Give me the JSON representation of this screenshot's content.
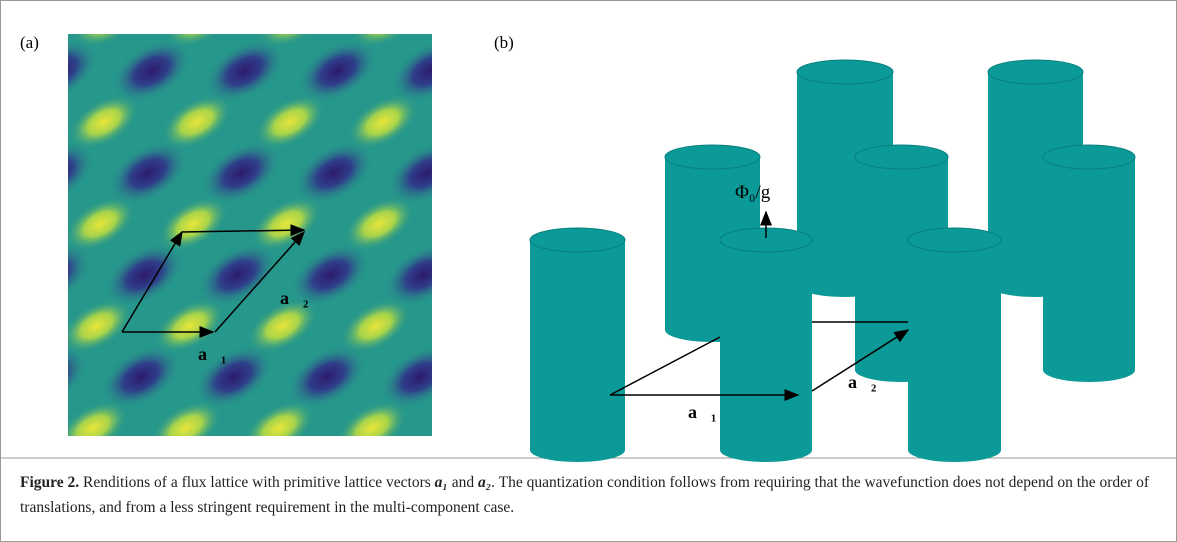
{
  "panels": {
    "a": {
      "label": "(a)",
      "vector_1": "a⃗₁",
      "vector_2": "a⃗₂"
    },
    "b": {
      "label": "(b)",
      "vector_1": "a⃗₁",
      "vector_2": "a⃗₂",
      "flux": "Φ₀/g"
    }
  },
  "caption": {
    "label": "Figure 2.",
    "segments": [
      "Renditions of a flux lattice with primitive lattice vectors ",
      "a₁",
      " and ",
      "a₂",
      ". The quantization condition follows from requiring that the wavefunction does not depend on the order of translations, and from a less stringent requirement in the multi-component case."
    ]
  }
}
